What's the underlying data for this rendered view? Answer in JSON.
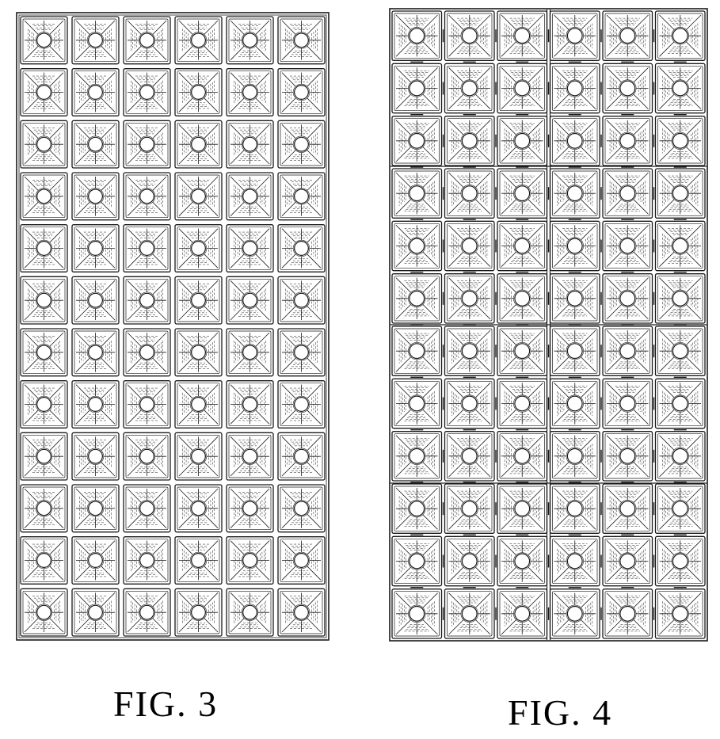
{
  "figures": [
    {
      "id": "fig3",
      "caption": "FIG. 3",
      "grid": {
        "columns": 6,
        "rows": 12
      },
      "stroke_color": "#1a1a1a"
    },
    {
      "id": "fig4",
      "caption": "FIG. 4",
      "grid": {
        "columns": 6,
        "rows": 12,
        "panel_rows": 4,
        "panel_columns": 2
      },
      "stroke_color": "#1a1a1a"
    }
  ]
}
